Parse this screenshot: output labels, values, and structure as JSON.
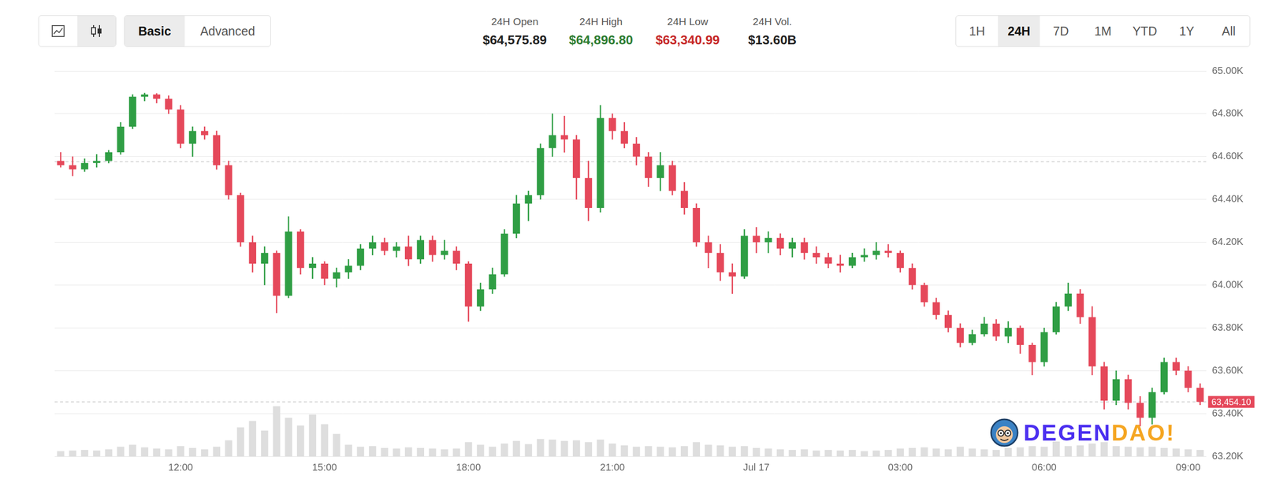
{
  "toolbar": {
    "modes": [
      "Basic",
      "Advanced"
    ],
    "selected_mode": "Basic"
  },
  "stats": [
    {
      "label": "24H Open",
      "value": "$64,575.89",
      "color": "#222222"
    },
    {
      "label": "24H High",
      "value": "$64,896.80",
      "color": "#2e7d32"
    },
    {
      "label": "24H Low",
      "value": "$63,340.99",
      "color": "#c62828"
    },
    {
      "label": "24H Vol.",
      "value": "$13.60B",
      "color": "#222222"
    }
  ],
  "ranges": {
    "options": [
      "1H",
      "24H",
      "7D",
      "1M",
      "YTD",
      "1Y",
      "All"
    ],
    "selected": "24H"
  },
  "watermark": [
    "DEGEN",
    "DAO!"
  ],
  "chart_data": {
    "type": "candlestick",
    "categories": [
      null,
      null,
      null,
      null,
      null,
      null,
      null,
      null,
      null,
      null,
      "12:00",
      null,
      null,
      null,
      null,
      null,
      null,
      null,
      null,
      null,
      null,
      null,
      "15:00",
      null,
      null,
      null,
      null,
      null,
      null,
      null,
      null,
      null,
      null,
      null,
      "18:00",
      null,
      null,
      null,
      null,
      null,
      null,
      null,
      null,
      null,
      null,
      null,
      "21:00",
      null,
      null,
      null,
      null,
      null,
      null,
      null,
      null,
      null,
      null,
      null,
      "Jul 17",
      null,
      null,
      null,
      null,
      null,
      null,
      null,
      null,
      null,
      null,
      null,
      "03:00",
      null,
      null,
      null,
      null,
      null,
      null,
      null,
      null,
      null,
      null,
      null,
      "06:00",
      null,
      null,
      null,
      null,
      null,
      null,
      null,
      null,
      null,
      null,
      null,
      "09:00",
      null
    ],
    "series": [
      {
        "type": "candlestick",
        "color": {
          "up": "#2f9e44",
          "down": "#e5485a"
        },
        "open": [
          64580,
          64560,
          64540,
          64570,
          64580,
          64620,
          64740,
          64880,
          64890,
          64870,
          64820,
          64660,
          64720,
          64700,
          64560,
          64420,
          64200,
          64100,
          64150,
          63950,
          64250,
          64080,
          64100,
          64030,
          64060,
          64090,
          64170,
          64200,
          64160,
          64180,
          64120,
          64210,
          64140,
          64160,
          64100,
          63900,
          63980,
          64050,
          64240,
          64380,
          64420,
          64640,
          64700,
          64680,
          64500,
          64360,
          64780,
          64720,
          64660,
          64600,
          64500,
          64560,
          64440,
          64360,
          64200,
          64150,
          64060,
          64040,
          64230,
          64200,
          64220,
          64170,
          64200,
          64150,
          64130,
          64100,
          64090,
          64130,
          64140,
          64160,
          64150,
          64080,
          64000,
          63920,
          63860,
          63800,
          63730,
          63770,
          63820,
          63760,
          63800,
          63720,
          63640,
          63780,
          63900,
          63960,
          63850,
          63620,
          63460,
          63560,
          63450,
          63380,
          63500,
          63640,
          63600,
          63520
        ],
        "high": [
          64620,
          64600,
          64590,
          64610,
          64630,
          64760,
          64890,
          64896.8,
          64895,
          64885,
          64840,
          64740,
          64740,
          64720,
          64580,
          64430,
          64230,
          64180,
          64160,
          64320,
          64260,
          64130,
          64110,
          64080,
          64120,
          64190,
          64230,
          64220,
          64200,
          64230,
          64230,
          64230,
          64210,
          64180,
          64110,
          64010,
          64080,
          64260,
          64420,
          64440,
          64660,
          64800,
          64790,
          64700,
          64580,
          64840,
          64800,
          64760,
          64690,
          64620,
          64620,
          64580,
          64480,
          64380,
          64230,
          64190,
          64100,
          64260,
          64270,
          64250,
          64240,
          64220,
          64220,
          64180,
          64150,
          64140,
          64150,
          64170,
          64200,
          64190,
          64160,
          64100,
          64010,
          63940,
          63880,
          63820,
          63790,
          63850,
          63840,
          63830,
          63810,
          63730,
          63800,
          63920,
          64010,
          63980,
          63900,
          63640,
          63600,
          63580,
          63480,
          63520,
          63660,
          63660,
          63620,
          63540
        ],
        "low": [
          64550,
          64510,
          64530,
          64550,
          64570,
          64610,
          64730,
          64860,
          64850,
          64800,
          64640,
          64600,
          64680,
          64540,
          64400,
          64180,
          64060,
          64000,
          63870,
          63940,
          64050,
          64030,
          64000,
          63990,
          64030,
          64070,
          64140,
          64140,
          64130,
          64090,
          64100,
          64110,
          64120,
          64070,
          63830,
          63880,
          63960,
          64040,
          64220,
          64300,
          64400,
          64600,
          64620,
          64400,
          64300,
          64340,
          64680,
          64640,
          64560,
          64460,
          64440,
          64420,
          64330,
          64180,
          64080,
          64020,
          63960,
          64030,
          64150,
          64150,
          64140,
          64130,
          64120,
          64100,
          64080,
          64060,
          64080,
          64110,
          64120,
          64130,
          64060,
          63980,
          63900,
          63840,
          63780,
          63710,
          63720,
          63760,
          63740,
          63730,
          63680,
          63580,
          63620,
          63770,
          63880,
          63820,
          63580,
          63420,
          63440,
          63420,
          63340.99,
          63350,
          63490,
          63580,
          63500,
          63440
        ],
        "close": [
          64560,
          64540,
          64570,
          64580,
          64620,
          64740,
          64880,
          64890,
          64870,
          64820,
          64660,
          64720,
          64700,
          64560,
          64420,
          64200,
          64100,
          64150,
          63950,
          64250,
          64080,
          64100,
          64030,
          64060,
          64090,
          64170,
          64200,
          64160,
          64180,
          64120,
          64210,
          64140,
          64160,
          64100,
          63900,
          63980,
          64050,
          64240,
          64380,
          64420,
          64640,
          64700,
          64680,
          64500,
          64360,
          64780,
          64720,
          64660,
          64600,
          64500,
          64560,
          64440,
          64360,
          64200,
          64150,
          64060,
          64040,
          64230,
          64200,
          64220,
          64170,
          64200,
          64150,
          64130,
          64100,
          64090,
          64130,
          64140,
          64160,
          64150,
          64080,
          64000,
          63920,
          63860,
          63800,
          63730,
          63770,
          63820,
          63760,
          63800,
          63720,
          63640,
          63780,
          63900,
          63960,
          63850,
          63620,
          63460,
          63560,
          63450,
          63380,
          63500,
          63640,
          63600,
          63520,
          63454.1
        ]
      },
      {
        "type": "bar",
        "axis": "y2",
        "color": "#dedede",
        "values": [
          800,
          900,
          1000,
          900,
          1100,
          1500,
          1800,
          1400,
          1200,
          1100,
          1600,
          1300,
          1100,
          1500,
          2500,
          4500,
          5500,
          4000,
          7800,
          6000,
          4800,
          6500,
          5000,
          3500,
          1800,
          1500,
          1600,
          1300,
          1200,
          1400,
          1300,
          1200,
          1100,
          1200,
          2200,
          1800,
          1500,
          2000,
          2400,
          1900,
          2700,
          2600,
          2400,
          2500,
          2200,
          2600,
          2000,
          1700,
          1500,
          1600,
          1500,
          1400,
          1600,
          2200,
          1800,
          1700,
          1500,
          1600,
          1300,
          1200,
          1100,
          1000,
          1100,
          900,
          1000,
          900,
          1000,
          800,
          900,
          1000,
          1200,
          1300,
          1400,
          1200,
          1100,
          1500,
          1200,
          1100,
          1000,
          1300,
          1400,
          1600,
          1500,
          2300,
          1600,
          1700,
          2000,
          2200,
          1600,
          1500,
          1400,
          1500,
          1300,
          1200,
          1100,
          1000
        ]
      }
    ],
    "ylim": [
      63200,
      65000
    ],
    "yticks": [
      {
        "value": 63200,
        "label": "63.20K"
      },
      {
        "value": 63400,
        "label": "63.40K"
      },
      {
        "value": 63600,
        "label": "63.60K"
      },
      {
        "value": 63800,
        "label": "63.80K"
      },
      {
        "value": 64000,
        "label": "64.00K"
      },
      {
        "value": 64200,
        "label": "64.20K"
      },
      {
        "value": 64400,
        "label": "64.40K"
      },
      {
        "value": 64600,
        "label": "64.60K"
      },
      {
        "value": 64800,
        "label": "64.80K"
      },
      {
        "value": 65000,
        "label": "65.00K"
      }
    ],
    "y2lim": [
      0,
      60000
    ],
    "reference_lines": [
      {
        "value": 64575.89,
        "line_style": "dashed",
        "color": "#c8c8c8"
      },
      {
        "value": 63454.1,
        "line_style": "dashed",
        "color": "#c8c8c8",
        "label": "63,454.10",
        "label_color": "#e5485a"
      }
    ],
    "grid": true,
    "legend": null
  }
}
